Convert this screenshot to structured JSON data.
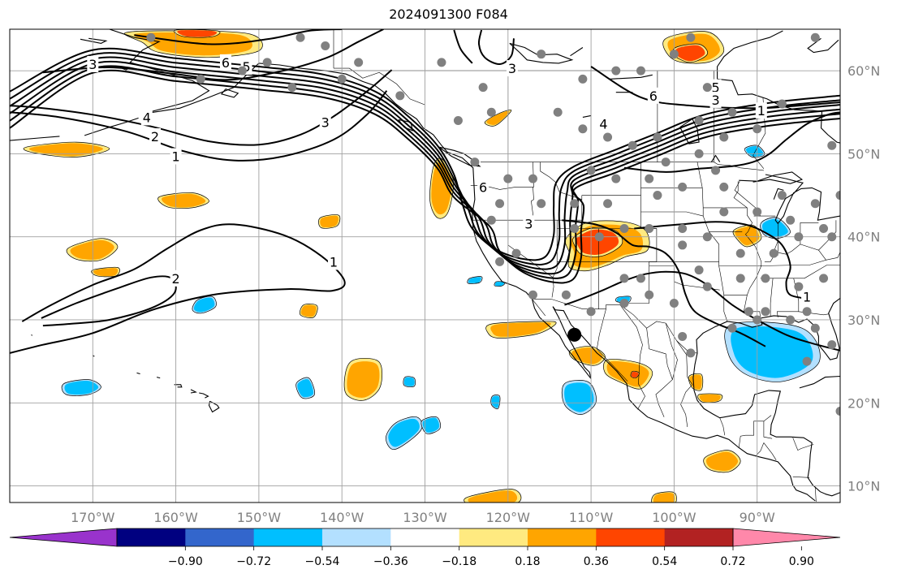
{
  "title": "2024091300 F084",
  "map": {
    "lon_range": [
      -180,
      -80
    ],
    "lat_range": [
      8,
      65
    ],
    "grid": true,
    "lon_ticks": [
      {
        "lon": -170,
        "label": "170°W"
      },
      {
        "lon": -160,
        "label": "160°W"
      },
      {
        "lon": -150,
        "label": "150°W"
      },
      {
        "lon": -140,
        "label": "140°W"
      },
      {
        "lon": -130,
        "label": "130°W"
      },
      {
        "lon": -120,
        "label": "120°W"
      },
      {
        "lon": -110,
        "label": "110°W"
      },
      {
        "lon": -100,
        "label": "100°W"
      },
      {
        "lon": -90,
        "label": "90°W"
      }
    ],
    "lat_ticks": [
      {
        "lat": 60,
        "label": "60°N"
      },
      {
        "lat": 50,
        "label": "50°N"
      },
      {
        "lat": 40,
        "label": "40°N"
      },
      {
        "lat": 30,
        "label": "30°N"
      },
      {
        "lat": 20,
        "label": "20°N"
      },
      {
        "lat": 10,
        "label": "10°N"
      }
    ],
    "contour_labels": [
      {
        "lon": -154.0,
        "lat": 61.0,
        "text": "6"
      },
      {
        "lon": -151.5,
        "lat": 60.5,
        "text": "5"
      },
      {
        "lon": -170.0,
        "lat": 60.8,
        "text": "3"
      },
      {
        "lon": -163.5,
        "lat": 54.4,
        "text": "4"
      },
      {
        "lon": -162.5,
        "lat": 52.1,
        "text": "2"
      },
      {
        "lon": -160.0,
        "lat": 49.7,
        "text": "1"
      },
      {
        "lon": -142.0,
        "lat": 53.8,
        "text": "3"
      },
      {
        "lon": -119.5,
        "lat": 60.3,
        "text": "3"
      },
      {
        "lon": -102.5,
        "lat": 57.0,
        "text": "6"
      },
      {
        "lon": -95.0,
        "lat": 58.0,
        "text": "5"
      },
      {
        "lon": -95.0,
        "lat": 56.5,
        "text": "3"
      },
      {
        "lon": -89.5,
        "lat": 55.2,
        "text": "1"
      },
      {
        "lon": -108.5,
        "lat": 53.6,
        "text": "4"
      },
      {
        "lon": -123.0,
        "lat": 46.0,
        "text": "6"
      },
      {
        "lon": -117.5,
        "lat": 41.6,
        "text": "3"
      },
      {
        "lon": -160.0,
        "lat": 35.0,
        "text": "2"
      },
      {
        "lon": -141.0,
        "lat": 37.0,
        "text": "1"
      },
      {
        "lon": -84.0,
        "lat": 32.8,
        "text": "1"
      }
    ],
    "stations": [
      [
        -163,
        64
      ],
      [
        -145,
        64
      ],
      [
        -157,
        59
      ],
      [
        -149,
        61
      ],
      [
        -152,
        60
      ],
      [
        -146,
        58
      ],
      [
        -142,
        63
      ],
      [
        -140,
        59
      ],
      [
        -138,
        61
      ],
      [
        -133,
        57
      ],
      [
        -128,
        61
      ],
      [
        -122,
        55
      ],
      [
        -116,
        62
      ],
      [
        -111,
        59
      ],
      [
        -114,
        55
      ],
      [
        -111,
        53
      ],
      [
        -105,
        51
      ],
      [
        -102,
        52
      ],
      [
        -108,
        52
      ],
      [
        -97,
        54
      ],
      [
        -94,
        52
      ],
      [
        -97,
        50
      ],
      [
        -101,
        49
      ],
      [
        -95,
        48
      ],
      [
        -94,
        46
      ],
      [
        -99,
        46
      ],
      [
        -103,
        47
      ],
      [
        -107,
        47
      ],
      [
        -110,
        48
      ],
      [
        -108,
        44
      ],
      [
        -112,
        44
      ],
      [
        -117,
        47
      ],
      [
        -120,
        47
      ],
      [
        -121,
        44
      ],
      [
        -122,
        42
      ],
      [
        -119,
        38
      ],
      [
        -116,
        44
      ],
      [
        -112,
        41
      ],
      [
        -109,
        40
      ],
      [
        -106,
        41
      ],
      [
        -103,
        41
      ],
      [
        -99,
        39
      ],
      [
        -94,
        43
      ],
      [
        -90,
        43
      ],
      [
        -87,
        45
      ],
      [
        -86,
        42
      ],
      [
        -88,
        38
      ],
      [
        -92,
        38
      ],
      [
        -97,
        36
      ],
      [
        -96,
        34
      ],
      [
        -100,
        32
      ],
      [
        -103,
        33
      ],
      [
        -106,
        32
      ],
      [
        -110,
        31
      ],
      [
        -113,
        33
      ],
      [
        -117,
        33
      ],
      [
        -121,
        37
      ],
      [
        -124,
        49
      ],
      [
        -126,
        54
      ],
      [
        -123,
        58
      ],
      [
        -98,
        26
      ],
      [
        -99,
        28
      ],
      [
        -93,
        29
      ],
      [
        -91,
        31
      ],
      [
        -89,
        31
      ],
      [
        -84,
        31
      ],
      [
        -83,
        29
      ],
      [
        -81,
        27
      ],
      [
        -84,
        25
      ],
      [
        -80,
        19
      ],
      [
        -82,
        35
      ],
      [
        -85,
        34
      ],
      [
        -89,
        35
      ],
      [
        -92,
        35
      ],
      [
        -85,
        40
      ],
      [
        -82,
        41
      ],
      [
        -81,
        40
      ],
      [
        -83,
        44
      ],
      [
        -80,
        45
      ],
      [
        -81,
        51
      ],
      [
        -87,
        56
      ],
      [
        -90,
        53
      ],
      [
        -93,
        55
      ],
      [
        -83,
        64
      ],
      [
        -98,
        64
      ],
      [
        -100,
        62
      ],
      [
        -104,
        60
      ],
      [
        -107,
        60
      ],
      [
        -96,
        58
      ],
      [
        -102,
        45
      ],
      [
        -99,
        41
      ],
      [
        -96,
        40
      ],
      [
        -104,
        35
      ],
      [
        -106,
        35
      ],
      [
        -90,
        30
      ],
      [
        -86,
        30
      ]
    ],
    "marker": {
      "lon": -112.0,
      "lat": 28.2
    }
  },
  "colorbar": {
    "colors": [
      "#9933cc",
      "#000080",
      "#3366cc",
      "#00bfff",
      "#b3e0ff",
      "#ffffff",
      "#ffea80",
      "#ffa500",
      "#ff4500",
      "#b22222",
      "#ff88aa"
    ],
    "under_color": "#9933cc",
    "over_color": "#ff88aa",
    "tick_labels": [
      "−0.90",
      "−0.72",
      "−0.54",
      "−0.36",
      "−0.18",
      "0.18",
      "0.36",
      "0.54",
      "0.72",
      "0.90"
    ]
  },
  "shading_colors": {
    "warm": "#ffa500",
    "warm_light": "#ffea80",
    "hot": "#ff4500",
    "cold": "#00bfff",
    "cold_light": "#b3e0ff"
  }
}
